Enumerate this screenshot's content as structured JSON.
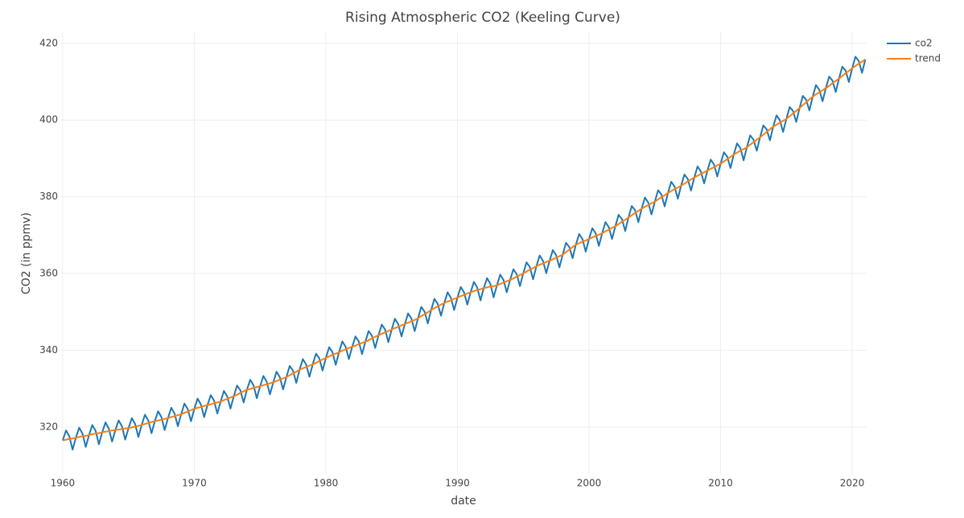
{
  "chart_data": {
    "type": "line",
    "title": "Rising Atmospheric CO2 (Keeling Curve)",
    "x_label": "date",
    "y_label": "CO2 (in ppmv)",
    "x": [
      1960,
      1960.25,
      1960.5,
      1960.75,
      1961,
      1961.25,
      1961.5,
      1961.75,
      1962,
      1962.25,
      1962.5,
      1962.75,
      1963,
      1963.25,
      1963.5,
      1963.75,
      1964,
      1964.25,
      1964.5,
      1964.75,
      1965,
      1965.25,
      1965.5,
      1965.75,
      1966,
      1966.25,
      1966.5,
      1966.75,
      1967,
      1967.25,
      1967.5,
      1967.75,
      1968,
      1968.25,
      1968.5,
      1968.75,
      1969,
      1969.25,
      1969.5,
      1969.75,
      1970,
      1970.25,
      1970.5,
      1970.75,
      1971,
      1971.25,
      1971.5,
      1971.75,
      1972,
      1972.25,
      1972.5,
      1972.75,
      1973,
      1973.25,
      1973.5,
      1973.75,
      1974,
      1974.25,
      1974.5,
      1974.75,
      1975,
      1975.25,
      1975.5,
      1975.75,
      1976,
      1976.25,
      1976.5,
      1976.75,
      1977,
      1977.25,
      1977.5,
      1977.75,
      1978,
      1978.25,
      1978.5,
      1978.75,
      1979,
      1979.25,
      1979.5,
      1979.75,
      1980,
      1980.25,
      1980.5,
      1980.75,
      1981,
      1981.25,
      1981.5,
      1981.75,
      1982,
      1982.25,
      1982.5,
      1982.75,
      1983,
      1983.25,
      1983.5,
      1983.75,
      1984,
      1984.25,
      1984.5,
      1984.75,
      1985,
      1985.25,
      1985.5,
      1985.75,
      1986,
      1986.25,
      1986.5,
      1986.75,
      1987,
      1987.25,
      1987.5,
      1987.75,
      1988,
      1988.25,
      1988.5,
      1988.75,
      1989,
      1989.25,
      1989.5,
      1989.75,
      1990,
      1990.25,
      1990.5,
      1990.75,
      1991,
      1991.25,
      1991.5,
      1991.75,
      1992,
      1992.25,
      1992.5,
      1992.75,
      1993,
      1993.25,
      1993.5,
      1993.75,
      1994,
      1994.25,
      1994.5,
      1994.75,
      1995,
      1995.25,
      1995.5,
      1995.75,
      1996,
      1996.25,
      1996.5,
      1996.75,
      1997,
      1997.25,
      1997.5,
      1997.75,
      1998,
      1998.25,
      1998.5,
      1998.75,
      1999,
      1999.25,
      1999.5,
      1999.75,
      2000,
      2000.25,
      2000.5,
      2000.75,
      2001,
      2001.25,
      2001.5,
      2001.75,
      2002,
      2002.25,
      2002.5,
      2002.75,
      2003,
      2003.25,
      2003.5,
      2003.75,
      2004,
      2004.25,
      2004.5,
      2004.75,
      2005,
      2005.25,
      2005.5,
      2005.75,
      2006,
      2006.25,
      2006.5,
      2006.75,
      2007,
      2007.25,
      2007.5,
      2007.75,
      2008,
      2008.25,
      2008.5,
      2008.75,
      2009,
      2009.25,
      2009.5,
      2009.75,
      2010,
      2010.25,
      2010.5,
      2010.75,
      2011,
      2011.25,
      2011.5,
      2011.75,
      2012,
      2012.25,
      2012.5,
      2012.75,
      2013,
      2013.25,
      2013.5,
      2013.75,
      2014,
      2014.25,
      2014.5,
      2014.75,
      2015,
      2015.25,
      2015.5,
      2015.75,
      2016,
      2016.25,
      2016.5,
      2016.75,
      2017,
      2017.25,
      2017.5,
      2017.75,
      2018,
      2018.25,
      2018.5,
      2018.75,
      2019,
      2019.25,
      2019.5,
      2019.75,
      2020,
      2020.25,
      2020.5,
      2020.75,
      2021
    ],
    "series": [
      {
        "name": "co2",
        "color": "#1f77b4",
        "values": [
          316.5,
          319.1,
          317.6,
          314.1,
          317.2,
          319.8,
          318.3,
          314.8,
          317.9,
          320.5,
          319.0,
          315.5,
          318.6,
          321.2,
          319.6,
          316.2,
          319.2,
          321.7,
          320.2,
          316.7,
          319.7,
          322.3,
          320.8,
          317.4,
          320.5,
          323.2,
          321.7,
          318.4,
          321.5,
          324.1,
          322.6,
          319.2,
          322.3,
          325.0,
          323.5,
          320.2,
          323.3,
          326.1,
          324.7,
          321.5,
          324.7,
          327.4,
          325.9,
          322.6,
          325.7,
          328.3,
          326.9,
          323.5,
          326.6,
          329.4,
          328.0,
          324.8,
          328.0,
          330.8,
          329.6,
          326.4,
          329.7,
          332.3,
          330.9,
          327.5,
          330.6,
          333.3,
          331.8,
          328.5,
          331.6,
          334.4,
          333.0,
          329.8,
          333.0,
          335.9,
          334.7,
          331.5,
          334.9,
          337.7,
          336.3,
          333.1,
          336.3,
          339.1,
          337.9,
          334.7,
          338.0,
          340.8,
          339.5,
          336.2,
          339.5,
          342.3,
          340.9,
          337.7,
          340.9,
          343.6,
          342.3,
          339.0,
          342.2,
          345.0,
          343.8,
          340.6,
          343.9,
          346.7,
          345.4,
          342.1,
          345.4,
          348.2,
          346.8,
          343.6,
          346.8,
          349.6,
          348.3,
          345.0,
          348.3,
          351.3,
          350.1,
          347.0,
          350.5,
          353.4,
          352.1,
          349.0,
          352.3,
          355.1,
          353.7,
          350.5,
          353.7,
          356.5,
          355.1,
          351.9,
          355.1,
          357.8,
          356.4,
          353.0,
          356.2,
          358.8,
          357.3,
          353.8,
          356.9,
          359.7,
          358.3,
          355.1,
          358.3,
          361.1,
          359.9,
          356.7,
          360.0,
          362.9,
          361.7,
          358.5,
          361.9,
          364.7,
          363.3,
          360.1,
          363.3,
          366.1,
          364.8,
          361.6,
          364.9,
          368.0,
          366.9,
          364.0,
          367.5,
          370.3,
          369.0,
          365.7,
          369.0,
          371.8,
          370.5,
          367.2,
          370.5,
          373.4,
          372.1,
          369.0,
          372.3,
          375.3,
          374.2,
          371.1,
          374.6,
          377.6,
          376.5,
          373.4,
          376.9,
          379.8,
          378.5,
          375.4,
          378.7,
          381.7,
          380.6,
          377.5,
          381.0,
          383.9,
          382.7,
          379.5,
          382.9,
          385.8,
          384.7,
          381.6,
          385.0,
          387.9,
          386.6,
          383.5,
          386.8,
          389.7,
          388.4,
          385.3,
          388.6,
          391.6,
          390.5,
          387.5,
          391.0,
          393.9,
          392.7,
          389.5,
          392.9,
          396.0,
          394.9,
          392.0,
          395.5,
          398.6,
          397.6,
          394.7,
          398.3,
          401.2,
          400.0,
          396.9,
          400.3,
          403.4,
          402.4,
          399.5,
          403.1,
          406.3,
          405.3,
          402.5,
          406.1,
          409.1,
          407.9,
          404.9,
          408.3,
          411.3,
          410.3,
          407.3,
          410.8,
          413.9,
          412.9,
          409.9,
          413.5,
          416.5,
          415.4,
          412.3,
          415.8
        ]
      },
      {
        "name": "trend",
        "color": "#ff7f0e",
        "values": [
          316.5,
          316.7,
          316.9,
          317.0,
          317.2,
          317.4,
          317.6,
          317.7,
          317.9,
          318.1,
          318.3,
          318.4,
          318.6,
          318.8,
          318.9,
          319.1,
          319.2,
          319.3,
          319.5,
          319.6,
          319.7,
          319.9,
          320.1,
          320.3,
          320.5,
          320.8,
          321.0,
          321.3,
          321.5,
          321.7,
          321.9,
          322.1,
          322.3,
          322.6,
          322.8,
          323.1,
          323.3,
          323.7,
          324.0,
          324.4,
          324.7,
          325.0,
          325.2,
          325.5,
          325.7,
          325.9,
          326.2,
          326.4,
          326.6,
          327.0,
          327.3,
          327.7,
          328.0,
          328.4,
          328.9,
          329.3,
          329.7,
          329.9,
          330.2,
          330.4,
          330.6,
          330.9,
          331.1,
          331.4,
          331.6,
          332.0,
          332.3,
          332.7,
          333.0,
          333.5,
          334.0,
          334.4,
          334.9,
          335.3,
          335.6,
          336.0,
          336.3,
          336.7,
          337.2,
          337.6,
          338.0,
          338.4,
          338.8,
          339.1,
          339.5,
          339.9,
          340.2,
          340.6,
          340.9,
          341.2,
          341.6,
          341.9,
          342.2,
          342.6,
          343.1,
          343.5,
          343.9,
          344.3,
          344.7,
          345.0,
          345.4,
          345.8,
          346.1,
          346.5,
          346.8,
          347.2,
          347.6,
          347.9,
          348.3,
          348.9,
          349.4,
          349.9,
          350.5,
          351.0,
          351.4,
          351.9,
          352.3,
          352.7,
          353.0,
          353.4,
          353.7,
          354.1,
          354.4,
          354.8,
          355.1,
          355.4,
          355.7,
          355.9,
          356.2,
          356.4,
          356.6,
          356.7,
          356.9,
          357.3,
          357.6,
          358.0,
          358.3,
          358.7,
          359.2,
          359.6,
          360.0,
          360.5,
          361.0,
          361.4,
          361.9,
          362.3,
          362.6,
          363.0,
          363.3,
          363.7,
          364.1,
          364.5,
          364.9,
          365.6,
          366.2,
          366.9,
          367.5,
          367.9,
          368.3,
          368.6,
          369.0,
          369.4,
          369.8,
          370.1,
          370.5,
          371.0,
          371.4,
          371.9,
          372.3,
          372.9,
          373.5,
          374.0,
          374.6,
          375.2,
          375.8,
          376.3,
          376.9,
          377.4,
          377.8,
          378.3,
          378.7,
          379.3,
          379.9,
          380.4,
          381.0,
          381.5,
          382.0,
          382.4,
          382.9,
          383.4,
          384.0,
          384.5,
          385.0,
          385.5,
          385.9,
          386.4,
          386.8,
          387.3,
          387.7,
          388.2,
          388.6,
          389.2,
          389.8,
          390.4,
          391.0,
          391.5,
          392.0,
          392.4,
          392.9,
          393.6,
          394.2,
          394.9,
          395.5,
          396.2,
          396.9,
          397.6,
          398.3,
          398.8,
          399.3,
          399.8,
          400.3,
          401.0,
          401.7,
          402.4,
          403.1,
          403.9,
          404.6,
          405.4,
          406.1,
          406.7,
          407.2,
          407.8,
          408.3,
          408.9,
          409.6,
          410.2,
          410.8,
          411.5,
          412.2,
          412.8,
          413.5,
          414.1,
          414.7,
          415.2,
          415.8
        ]
      }
    ],
    "xlim": [
      1959.82,
      2021.1
    ],
    "ylim": [
      307.6,
      422.9
    ],
    "xticks": [
      1960,
      1970,
      1980,
      1990,
      2000,
      2010,
      2020
    ],
    "yticks": [
      320,
      340,
      360,
      380,
      400,
      420
    ],
    "grid": true,
    "legend": "top-right"
  }
}
